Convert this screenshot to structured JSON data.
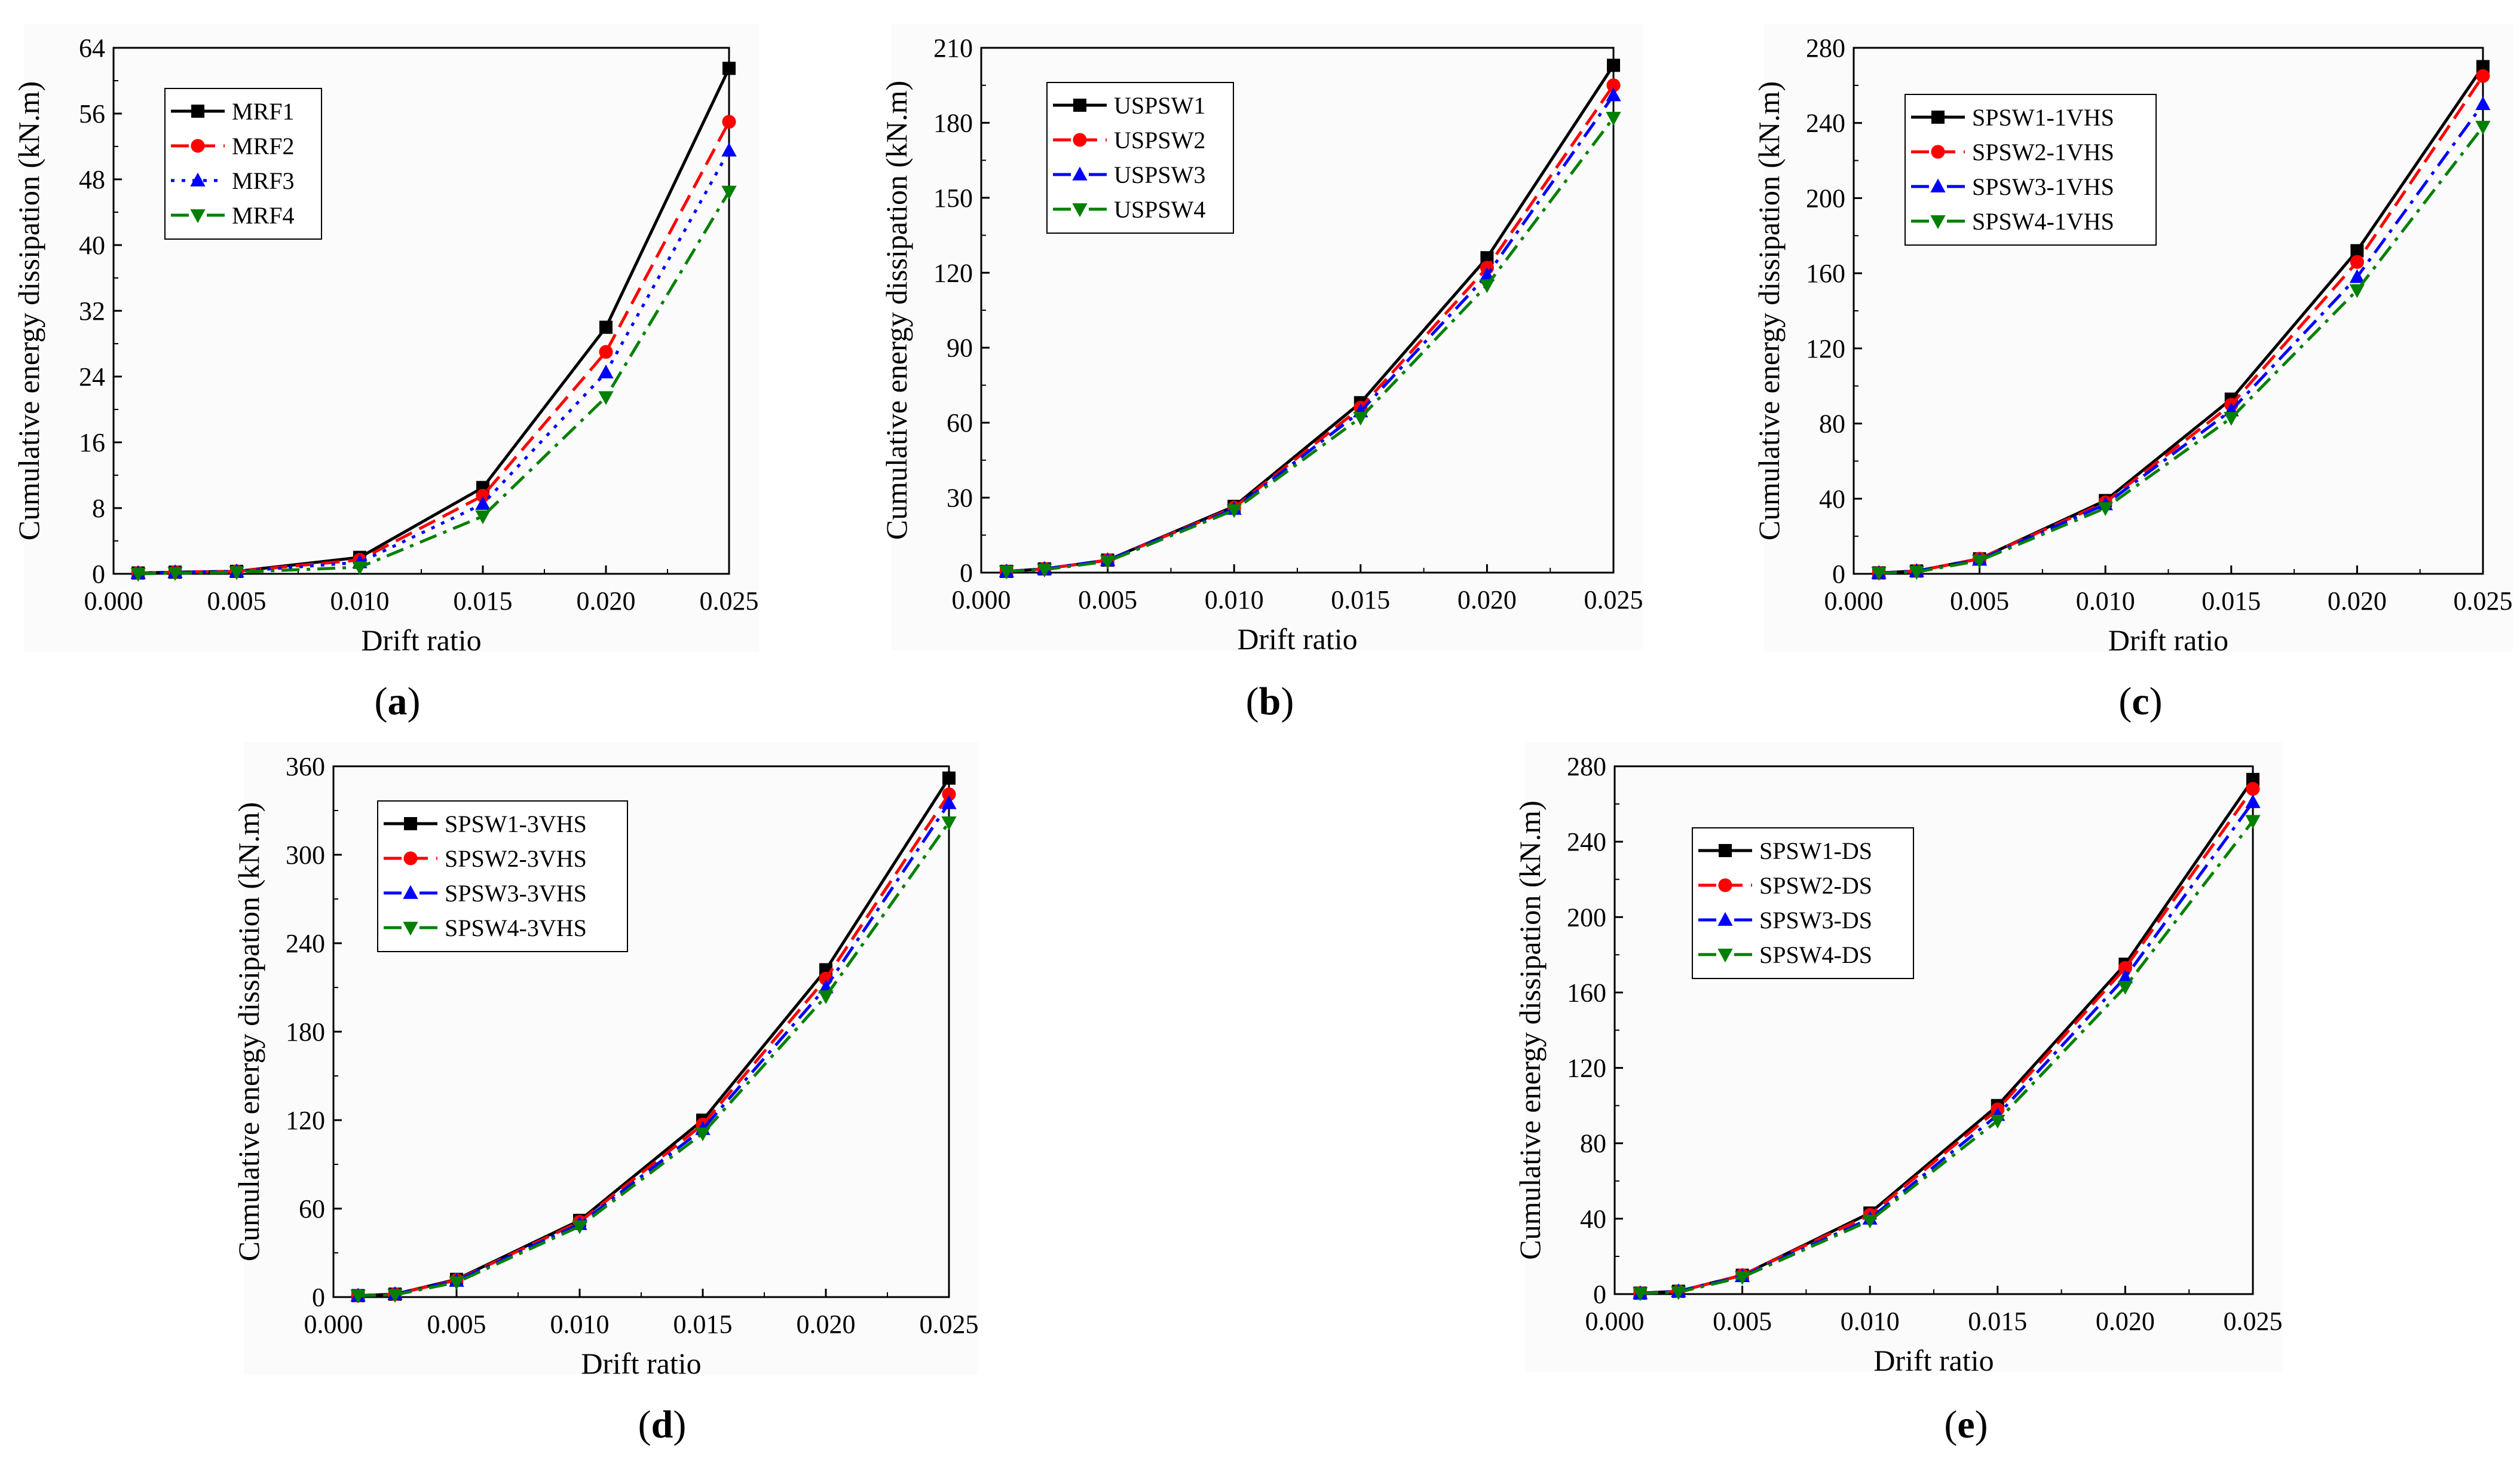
{
  "chart_data": [
    {
      "type": "line",
      "panel": "a",
      "caption_letter": "a",
      "xlabel": "Drift ratio",
      "ylabel": "Cumulative energy dissipation (kN.m)",
      "xlim": [
        0.0,
        0.025
      ],
      "ylim": [
        0,
        64
      ],
      "xticks": [
        "0.000",
        "0.005",
        "0.010",
        "0.015",
        "0.020",
        "0.025"
      ],
      "yticks": [
        "0",
        "8",
        "16",
        "24",
        "32",
        "40",
        "48",
        "56",
        "64"
      ],
      "x": [
        0.001,
        0.0025,
        0.005,
        0.01,
        0.015,
        0.02,
        0.025
      ],
      "legend_position": "top-left",
      "series": [
        {
          "name": "MRF1",
          "color": "#000000",
          "dash": "solid",
          "marker": "square",
          "values": [
            0.1,
            0.2,
            0.3,
            2.0,
            10.5,
            30.0,
            61.5
          ]
        },
        {
          "name": "MRF2",
          "color": "#ff0000",
          "dash": "dash",
          "marker": "circle",
          "values": [
            0.1,
            0.2,
            0.3,
            1.7,
            9.5,
            27.0,
            55.0
          ]
        },
        {
          "name": "MRF3",
          "color": "#0000ff",
          "dash": "dot",
          "marker": "triangle-up",
          "values": [
            0.1,
            0.2,
            0.3,
            1.4,
            8.5,
            24.5,
            51.5
          ]
        },
        {
          "name": "MRF4",
          "color": "#008000",
          "dash": "dashdot",
          "marker": "triangle-down",
          "values": [
            0.0,
            0.1,
            0.2,
            0.8,
            7.0,
            21.5,
            46.5
          ]
        }
      ]
    },
    {
      "type": "line",
      "panel": "b",
      "caption_letter": "b",
      "xlabel": "Drift ratio",
      "ylabel": "Cumulative energy dissipation (kN.m)",
      "xlim": [
        0.0,
        0.025
      ],
      "ylim": [
        0,
        210
      ],
      "xticks": [
        "0.000",
        "0.005",
        "0.010",
        "0.015",
        "0.020",
        "0.025"
      ],
      "yticks": [
        "0",
        "30",
        "60",
        "90",
        "120",
        "150",
        "180",
        "210"
      ],
      "x": [
        0.001,
        0.0025,
        0.005,
        0.01,
        0.015,
        0.02,
        0.025
      ],
      "legend_position": "top-left",
      "series": [
        {
          "name": "USPSW1",
          "color": "#000000",
          "dash": "solid",
          "marker": "square",
          "values": [
            0.5,
            1.5,
            5.0,
            26.5,
            68.0,
            126.0,
            203.0
          ]
        },
        {
          "name": "USPSW2",
          "color": "#ff0000",
          "dash": "dash",
          "marker": "circle",
          "values": [
            0.5,
            1.5,
            5.0,
            26.0,
            66.0,
            122.0,
            195.0
          ]
        },
        {
          "name": "USPSW3",
          "color": "#0000ff",
          "dash": "dashdot",
          "marker": "triangle-up",
          "values": [
            0.5,
            1.5,
            5.0,
            25.5,
            64.5,
            119.0,
            191.0
          ]
        },
        {
          "name": "USPSW4",
          "color": "#008000",
          "dash": "dashdot",
          "marker": "triangle-down",
          "values": [
            0.5,
            1.2,
            4.5,
            25.0,
            62.0,
            115.0,
            182.0
          ]
        }
      ]
    },
    {
      "type": "line",
      "panel": "c",
      "caption_letter": "c",
      "xlabel": "Drift ratio",
      "ylabel": "Cumulative energy dissipation (kN.m)",
      "xlim": [
        0.0,
        0.025
      ],
      "ylim": [
        0,
        280
      ],
      "xticks": [
        "0.000",
        "0.005",
        "0.010",
        "0.015",
        "0.020",
        "0.025"
      ],
      "yticks": [
        "0",
        "40",
        "80",
        "120",
        "160",
        "200",
        "240",
        "280"
      ],
      "x": [
        0.001,
        0.0025,
        0.005,
        0.01,
        0.015,
        0.02,
        0.025
      ],
      "legend_position": "top-left",
      "series": [
        {
          "name": "SPSW1-1VHS",
          "color": "#000000",
          "dash": "solid",
          "marker": "square",
          "values": [
            0.5,
            1.5,
            8.0,
            39.0,
            93.0,
            172.0,
            270.0
          ]
        },
        {
          "name": "SPSW2-1VHS",
          "color": "#ff0000",
          "dash": "dash",
          "marker": "circle",
          "values": [
            0.5,
            1.5,
            8.0,
            38.0,
            90.0,
            166.0,
            265.0
          ]
        },
        {
          "name": "SPSW3-1VHS",
          "color": "#0000ff",
          "dash": "dashdot",
          "marker": "triangle-up",
          "values": [
            0.5,
            1.5,
            7.5,
            37.0,
            87.0,
            158.0,
            250.0
          ]
        },
        {
          "name": "SPSW4-1VHS",
          "color": "#008000",
          "dash": "dashdot",
          "marker": "triangle-down",
          "values": [
            0.5,
            1.0,
            7.0,
            35.0,
            83.0,
            151.0,
            238.0
          ]
        }
      ]
    },
    {
      "type": "line",
      "panel": "d",
      "caption_letter": "d",
      "xlabel": "Drift ratio",
      "ylabel": "Cumulative energy dissipation (kN.m)",
      "xlim": [
        0.0,
        0.025
      ],
      "ylim": [
        0,
        360
      ],
      "xticks": [
        "0.000",
        "0.005",
        "0.010",
        "0.015",
        "0.020",
        "0.025"
      ],
      "yticks": [
        "0",
        "60",
        "120",
        "180",
        "240",
        "300",
        "360"
      ],
      "x": [
        0.001,
        0.0025,
        0.005,
        0.01,
        0.015,
        0.02,
        0.025
      ],
      "legend_position": "top-left",
      "series": [
        {
          "name": "SPSW1-3VHS",
          "color": "#000000",
          "dash": "solid",
          "marker": "square",
          "values": [
            1.0,
            2.0,
            12.0,
            52.0,
            120.0,
            222.0,
            352.0
          ]
        },
        {
          "name": "SPSW2-3VHS",
          "color": "#ff0000",
          "dash": "dash",
          "marker": "circle",
          "values": [
            1.0,
            2.0,
            11.5,
            51.0,
            117.0,
            216.0,
            341.0
          ]
        },
        {
          "name": "SPSW3-3VHS",
          "color": "#0000ff",
          "dash": "dashdot",
          "marker": "triangle-up",
          "values": [
            1.0,
            2.0,
            11.0,
            49.5,
            114.0,
            210.0,
            335.0
          ]
        },
        {
          "name": "SPSW4-3VHS",
          "color": "#008000",
          "dash": "dashdot",
          "marker": "triangle-down",
          "values": [
            1.0,
            1.5,
            10.0,
            48.0,
            111.0,
            204.0,
            322.0
          ]
        }
      ]
    },
    {
      "type": "line",
      "panel": "e",
      "caption_letter": "e",
      "xlabel": "Drift ratio",
      "ylabel": "Cumulative energy dissipation (kN.m)",
      "xlim": [
        0.0,
        0.025
      ],
      "ylim": [
        0,
        280
      ],
      "xticks": [
        "0.000",
        "0.005",
        "0.010",
        "0.015",
        "0.020",
        "0.025"
      ],
      "yticks": [
        "0",
        "40",
        "80",
        "120",
        "160",
        "200",
        "240",
        "280"
      ],
      "x": [
        0.001,
        0.0025,
        0.005,
        0.01,
        0.015,
        0.02,
        0.025
      ],
      "legend_position": "top-left",
      "series": [
        {
          "name": "SPSW1-DS",
          "color": "#000000",
          "dash": "solid",
          "marker": "square",
          "values": [
            0.5,
            1.5,
            10.0,
            43.0,
            100.0,
            175.0,
            273.0
          ]
        },
        {
          "name": "SPSW2-DS",
          "color": "#ff0000",
          "dash": "dash",
          "marker": "circle",
          "values": [
            0.5,
            1.5,
            10.0,
            42.0,
            98.0,
            173.0,
            268.0
          ]
        },
        {
          "name": "SPSW3-DS",
          "color": "#0000ff",
          "dash": "dashdot",
          "marker": "triangle-up",
          "values": [
            0.5,
            1.5,
            9.5,
            40.0,
            95.0,
            168.0,
            261.0
          ]
        },
        {
          "name": "SPSW4-DS",
          "color": "#008000",
          "dash": "dashdot",
          "marker": "triangle-down",
          "values": [
            0.5,
            1.0,
            9.0,
            39.0,
            92.0,
            163.0,
            251.0
          ]
        }
      ]
    }
  ]
}
